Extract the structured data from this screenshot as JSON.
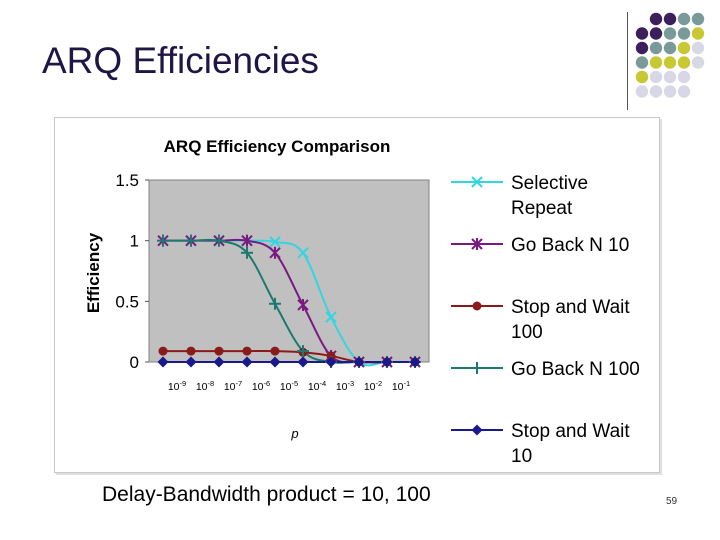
{
  "slide": {
    "title": "ARQ Efficiencies",
    "caption": "Delay-Bandwidth product = 10, 100",
    "page_number": "59"
  },
  "colors": {
    "title": "#1f1646",
    "plot_bg": "#c0c0c0",
    "dot_purple": "#3d1f5c",
    "dot_teal": "#7a9a9a",
    "dot_yellow": "#c8c832",
    "dot_lavender": "#d7d7e6"
  },
  "chart_data": {
    "type": "line",
    "title": "ARQ Efficiency Comparison",
    "xlabel": "p",
    "ylabel": "Efficiency",
    "categories": [
      "10-9",
      "10-8",
      "10-7",
      "10-6",
      "10-5",
      "10-4",
      "10-3",
      "10-2",
      "10-1"
    ],
    "category_tick_labels": [
      {
        "base": "10",
        "exp": "-9"
      },
      {
        "base": "10",
        "exp": "-8"
      },
      {
        "base": "10",
        "exp": "-7"
      },
      {
        "base": "10",
        "exp": "-6"
      },
      {
        "base": "10",
        "exp": "-5"
      },
      {
        "base": "10",
        "exp": "-4"
      },
      {
        "base": "10",
        "exp": "-3"
      },
      {
        "base": "10",
        "exp": "-2"
      },
      {
        "base": "10",
        "exp": "-1"
      }
    ],
    "ylim": [
      0,
      1.5
    ],
    "yticks": [
      {
        "value": 0,
        "label": "0"
      },
      {
        "value": 0.5,
        "label": "0.5"
      },
      {
        "value": 1,
        "label": "1"
      },
      {
        "value": 1.5,
        "label": "1.5"
      }
    ],
    "grid": false,
    "legend_position": "right",
    "series": [
      {
        "name": "Selective Repeat",
        "legend_lines": [
          "Selective",
          "Repeat"
        ],
        "color": "#33d6e0",
        "marker": "x",
        "x": [
          1,
          2,
          3,
          4,
          5,
          6,
          7,
          8,
          9
        ],
        "values": [
          1.0,
          1.0,
          1.0,
          0.99,
          0.9,
          0.37,
          0.0,
          0.0,
          0.0
        ]
      },
      {
        "name": "Go Back N 10",
        "legend_lines": [
          "Go Back N 10"
        ],
        "color": "#7a1a80",
        "marker": "asterisk",
        "x": [
          0,
          1,
          2,
          3,
          4,
          5,
          6,
          7,
          8,
          9
        ],
        "values": [
          1.0,
          1.0,
          1.0,
          1.0,
          0.9,
          0.47,
          0.05,
          0.0,
          0.0,
          0.0
        ]
      },
      {
        "name": "Stop and Wait 100",
        "legend_lines": [
          "Stop and Wait",
          "100"
        ],
        "color": "#8b1a1a",
        "marker": "circle",
        "x": [
          0,
          1,
          2,
          3,
          4,
          5,
          6,
          7,
          8,
          9
        ],
        "values": [
          0.09,
          0.09,
          0.09,
          0.09,
          0.09,
          0.08,
          0.05,
          0.0,
          0.0,
          0.0
        ]
      },
      {
        "name": "Go Back N 100",
        "legend_lines": [
          "Go Back N 100"
        ],
        "color": "#1a7a6e",
        "marker": "plus",
        "x": [
          0,
          1,
          2,
          3,
          4,
          5,
          6,
          7,
          8,
          9
        ],
        "values": [
          1.0,
          1.0,
          1.0,
          0.9,
          0.48,
          0.09,
          0.0,
          0.0,
          0.0,
          0.0
        ]
      },
      {
        "name": "Stop and Wait 10",
        "legend_lines": [
          "Stop and Wait",
          "10"
        ],
        "color": "#1a1a8c",
        "marker": "diamond",
        "x": [
          0,
          1,
          2,
          3,
          4,
          5,
          6,
          7,
          8,
          9
        ],
        "values": [
          0.0,
          0.0,
          0.0,
          0.0,
          0.0,
          0.0,
          0.0,
          0.0,
          0.0,
          0.0
        ]
      }
    ]
  }
}
